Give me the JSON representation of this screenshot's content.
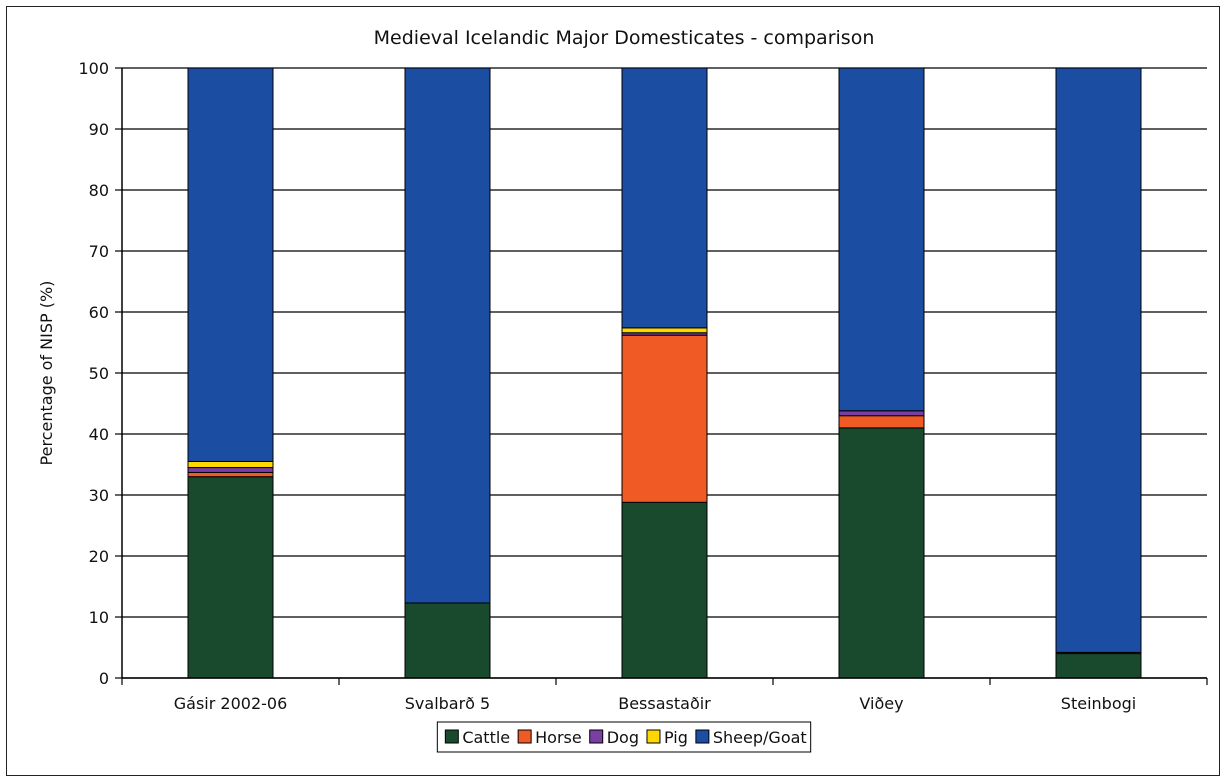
{
  "chart_data": {
    "type": "bar",
    "stacked": true,
    "title": "Medieval Icelandic Major Domesticates - comparison",
    "xlabel": "",
    "ylabel": "Percentage of NISP (%)",
    "ylim": [
      0,
      100
    ],
    "yticks": [
      "0",
      "10",
      "20",
      "30",
      "40",
      "50",
      "60",
      "70",
      "80",
      "90",
      "100"
    ],
    "grid": true,
    "legend_position": "bottom",
    "categories": [
      "Gásir 2002-06",
      "Svalbarð 5",
      "Bessastaðir",
      "Viðey",
      "Steinbogi"
    ],
    "series": [
      {
        "name": "Cattle",
        "color": "#1a4a2e",
        "values": [
          33,
          12.3,
          28.8,
          41,
          4
        ]
      },
      {
        "name": "Horse",
        "color": "#f05a24",
        "values": [
          0.7,
          0,
          27.4,
          2,
          0
        ]
      },
      {
        "name": "Dog",
        "color": "#7a3fa0",
        "values": [
          0.8,
          0,
          0.4,
          0.8,
          0.2
        ]
      },
      {
        "name": "Pig",
        "color": "#ffd700",
        "values": [
          1,
          0,
          0.8,
          0,
          0
        ]
      },
      {
        "name": "Sheep/Goat",
        "color": "#1b4ea3",
        "values": [
          64.5,
          87.7,
          42.6,
          56.2,
          95.8
        ]
      }
    ]
  }
}
